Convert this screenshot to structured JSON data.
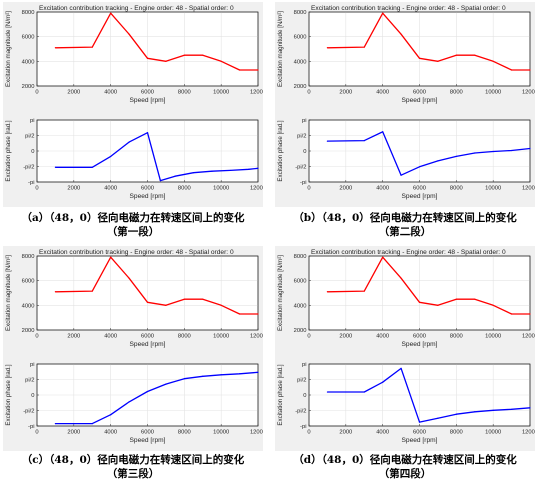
{
  "chart_data": [
    {
      "caption_line1": "（a）（48，0）径向电磁力在转速区间上的变化",
      "caption_line2": "（第一段）",
      "subplots": [
        {
          "type": "line",
          "title": "Excitation contribution tracking - Engine order: 48 - Spatial order: 0",
          "xlabel": "Speed [rpm]",
          "ylabel": "Excitation magnitude [N/m²]",
          "xlim": [
            0,
            12000
          ],
          "ylim": [
            2000,
            8000
          ],
          "x_ticks": [
            "0",
            "2000",
            "4000",
            "6000",
            "8000",
            "10000",
            "12000"
          ],
          "y_ticks": [
            "2000",
            "4000",
            "6000",
            "8000"
          ],
          "grid": true,
          "color": "#ff0000",
          "x": [
            1000,
            3000,
            4000,
            5000,
            6000,
            7000,
            8000,
            9000,
            10000,
            11000,
            12000
          ],
          "y": [
            5100,
            5150,
            7900,
            6200,
            4250,
            4000,
            4500,
            4500,
            4000,
            3300,
            3300
          ]
        },
        {
          "type": "line",
          "title": "",
          "xlabel": "Speed [rpm]",
          "ylabel": "Excitation phase [rad.]",
          "xlim": [
            0,
            12000
          ],
          "ylim": [
            -3.1416,
            3.1416
          ],
          "x_ticks": [
            "0",
            "2000",
            "4000",
            "6000",
            "8000",
            "10000",
            "12000"
          ],
          "y_ticks": [
            "-pi",
            "-pi/2",
            "0",
            "pi/2",
            "pi"
          ],
          "grid": true,
          "color": "#0000ff",
          "x": [
            1000,
            3000,
            4000,
            5000,
            6000,
            6700,
            7500,
            8500,
            9500,
            10500,
            11500,
            12000
          ],
          "y": [
            -1.65,
            -1.65,
            -0.55,
            0.9,
            1.85,
            -3.0,
            -2.55,
            -2.2,
            -2.05,
            -1.97,
            -1.85,
            -1.75
          ]
        }
      ]
    },
    {
      "caption_line1": "（b）（48，0）径向电磁力在转速区间上的变化",
      "caption_line2": "（第二段）",
      "subplots": [
        {
          "type": "line",
          "title": "Excitation contribution tracking - Engine order: 48 - Spatial order: 0",
          "xlabel": "Speed [rpm]",
          "ylabel": "Excitation magnitude [N/m²]",
          "xlim": [
            0,
            12000
          ],
          "ylim": [
            2000,
            8000
          ],
          "x_ticks": [
            "0",
            "2000",
            "4000",
            "6000",
            "8000",
            "10000",
            "12000"
          ],
          "y_ticks": [
            "2000",
            "4000",
            "6000",
            "8000"
          ],
          "grid": true,
          "color": "#ff0000",
          "x": [
            1000,
            3000,
            4000,
            5000,
            6000,
            7000,
            8000,
            9000,
            10000,
            11000,
            12000
          ],
          "y": [
            5100,
            5150,
            7900,
            6200,
            4250,
            4000,
            4500,
            4500,
            4000,
            3300,
            3300
          ]
        },
        {
          "type": "line",
          "title": "",
          "xlabel": "Speed [rpm]",
          "ylabel": "Excitation phase [rad.]",
          "xlim": [
            0,
            12000
          ],
          "ylim": [
            -3.1416,
            3.1416
          ],
          "x_ticks": [
            "0",
            "2000",
            "4000",
            "6000",
            "8000",
            "10000",
            "12000"
          ],
          "y_ticks": [
            "-pi",
            "-pi/2",
            "0",
            "pi/2",
            "pi"
          ],
          "grid": true,
          "color": "#0000ff",
          "x": [
            1000,
            3000,
            4000,
            5000,
            6000,
            7000,
            8000,
            9000,
            10000,
            11000,
            12000
          ],
          "y": [
            1.0,
            1.05,
            1.95,
            -2.45,
            -1.6,
            -1.0,
            -0.55,
            -0.2,
            -0.05,
            0.05,
            0.25
          ]
        }
      ]
    },
    {
      "caption_line1": "（c）（48，0）径向电磁力在转速区间上的变化",
      "caption_line2": "（第三段）",
      "subplots": [
        {
          "type": "line",
          "title": "Excitation contribution tracking - Engine order: 48 - Spatial order: 0",
          "xlabel": "Speed [rpm]",
          "ylabel": "Excitation magnitude [N/m²]",
          "xlim": [
            0,
            12000
          ],
          "ylim": [
            2000,
            8000
          ],
          "x_ticks": [
            "0",
            "2000",
            "4000",
            "6000",
            "8000",
            "10000",
            "12000"
          ],
          "y_ticks": [
            "2000",
            "4000",
            "6000",
            "8000"
          ],
          "grid": true,
          "color": "#ff0000",
          "x": [
            1000,
            3000,
            4000,
            5000,
            6000,
            7000,
            8000,
            9000,
            10000,
            11000,
            12000
          ],
          "y": [
            5100,
            5150,
            7900,
            6200,
            4250,
            4000,
            4500,
            4500,
            4000,
            3300,
            3300
          ]
        },
        {
          "type": "line",
          "title": "",
          "xlabel": "Speed [rpm]",
          "ylabel": "Excitation phase [rad.]",
          "xlim": [
            0,
            12000
          ],
          "ylim": [
            -3.1416,
            3.1416
          ],
          "x_ticks": [
            "0",
            "2000",
            "4000",
            "6000",
            "8000",
            "10000",
            "12000"
          ],
          "y_ticks": [
            "-pi",
            "-pi/2",
            "0",
            "pi/2",
            "pi"
          ],
          "grid": true,
          "color": "#0000ff",
          "x": [
            1000,
            3000,
            4000,
            5000,
            6000,
            7000,
            8000,
            9000,
            10000,
            11000,
            12000
          ],
          "y": [
            -2.9,
            -2.9,
            -2.0,
            -0.7,
            0.35,
            1.1,
            1.65,
            1.9,
            2.05,
            2.15,
            2.3
          ]
        }
      ]
    },
    {
      "caption_line1": "（d）（48，0）径向电磁力在转速区间上的变化",
      "caption_line2": "（第四段）",
      "subplots": [
        {
          "type": "line",
          "title": "Excitation contribution tracking - Engine order: 48 - Spatial order: 0",
          "xlabel": "Speed [rpm]",
          "ylabel": "Excitation magnitude [N/m²]",
          "xlim": [
            0,
            12000
          ],
          "ylim": [
            2000,
            8000
          ],
          "x_ticks": [
            "0",
            "2000",
            "4000",
            "6000",
            "8000",
            "10000",
            "12000"
          ],
          "y_ticks": [
            "2000",
            "4000",
            "6000",
            "8000"
          ],
          "grid": true,
          "color": "#ff0000",
          "x": [
            1000,
            3000,
            4000,
            5000,
            6000,
            7000,
            8000,
            9000,
            10000,
            11000,
            12000
          ],
          "y": [
            5100,
            5150,
            7900,
            6200,
            4250,
            4000,
            4500,
            4500,
            4000,
            3300,
            3300
          ]
        },
        {
          "type": "line",
          "title": "",
          "xlabel": "Speed [rpm]",
          "ylabel": "Excitation phase [rad.]",
          "xlim": [
            0,
            12000
          ],
          "ylim": [
            -3.1416,
            3.1416
          ],
          "x_ticks": [
            "0",
            "2000",
            "4000",
            "6000",
            "8000",
            "10000",
            "12000"
          ],
          "y_ticks": [
            "-pi",
            "-pi/2",
            "0",
            "pi/2",
            "pi"
          ],
          "grid": true,
          "color": "#0000ff",
          "x": [
            1000,
            3000,
            4000,
            5000,
            6000,
            7000,
            8000,
            9000,
            10000,
            11000,
            12000
          ],
          "y": [
            0.3,
            0.3,
            1.3,
            2.7,
            -2.75,
            -2.35,
            -1.95,
            -1.7,
            -1.55,
            -1.45,
            -1.3
          ]
        }
      ]
    }
  ]
}
